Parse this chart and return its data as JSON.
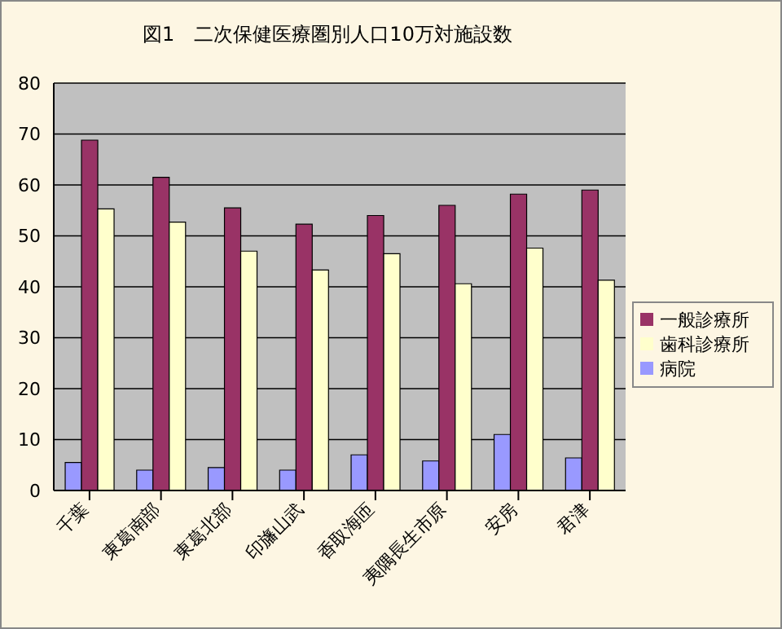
{
  "chart_data": {
    "type": "bar",
    "title": "図1　二次保健医療圏別人口10万対施設数",
    "categories": [
      "千葉",
      "東葛南部",
      "東葛北部",
      "印旛山武",
      "香取海匝",
      "夷隅長生市原",
      "安房",
      "君津"
    ],
    "series": [
      {
        "name": "病院",
        "color": "#9999ff",
        "values": [
          5.5,
          4,
          4.5,
          4,
          7,
          5.8,
          11,
          6.4
        ]
      },
      {
        "name": "一般診療所",
        "color": "#993366",
        "values": [
          68.8,
          61.5,
          55.5,
          52.3,
          54,
          56,
          58.2,
          59
        ]
      },
      {
        "name": "歯科診療所",
        "color": "#ffffcc",
        "values": [
          55.3,
          52.7,
          47,
          43.3,
          46.5,
          40.6,
          47.6,
          41.3
        ]
      }
    ],
    "ylim": [
      0,
      80
    ],
    "yticks": [
      0,
      10,
      20,
      30,
      40,
      50,
      60,
      70,
      80
    ],
    "grid": "y",
    "legend": "right"
  }
}
